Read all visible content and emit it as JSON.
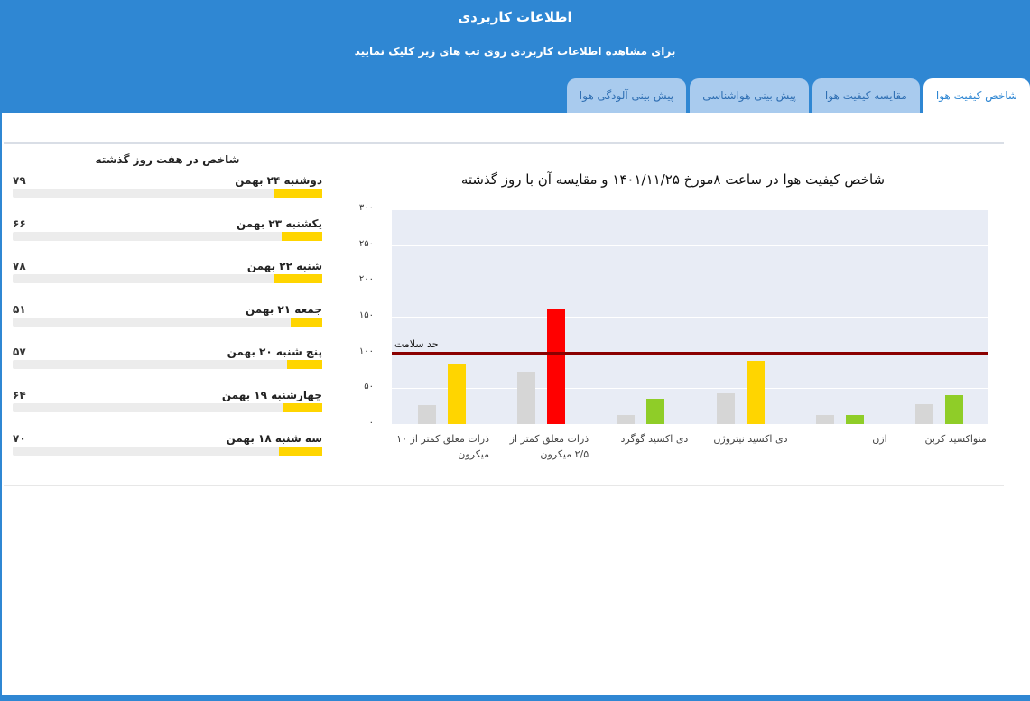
{
  "header": {
    "title": "اطلاعات کاربردی",
    "subtitle": "برای مشاهده اطلاعات کاربردی روی تب های زیر کلیک نمایید"
  },
  "tabs": [
    {
      "label": "شاخص کیفیت هوا",
      "active": true
    },
    {
      "label": "مقایسه کیفیت هوا",
      "active": false
    },
    {
      "label": "پیش بینی هواشناسی",
      "active": false
    },
    {
      "label": "پیش بینی آلودگی هوا",
      "active": false
    }
  ],
  "history": {
    "title": "شاخص در هفت روز گذشته",
    "items": [
      {
        "day": "دوشنبه ۲۴ بهمن",
        "value": "۷۹",
        "level": 79
      },
      {
        "day": "یکشنبه ۲۳ بهمن",
        "value": "۶۶",
        "level": 66
      },
      {
        "day": "شنبه ۲۲ بهمن",
        "value": "۷۸",
        "level": 78
      },
      {
        "day": "جمعه ۲۱ بهمن",
        "value": "۵۱",
        "level": 51
      },
      {
        "day": "پنج شنبه ۲۰ بهمن",
        "value": "۵۷",
        "level": 57
      },
      {
        "day": "چهارشنبه ۱۹ بهمن",
        "value": "۶۴",
        "level": 64
      },
      {
        "day": "سه شنبه ۱۸ بهمن",
        "value": "۷۰",
        "level": 70
      }
    ],
    "bar_color": "#ffd500"
  },
  "chart_data": {
    "type": "bar",
    "title": "شاخص کیفیت هوا در ساعت ۸مورخ ۱۴۰۱/۱۱/۲۵ و مقایسه آن با روز گذشته",
    "categories": [
      "منواکسید کربن",
      "ازن",
      "دی اکسید نیتروژن",
      "دی اکسید گوگرد",
      "ذرات معلق کمتر از ۲/۵ میکرون",
      "ذرات معلق کمتر از ۱۰ میکرون"
    ],
    "series": [
      {
        "values": [
          28,
          12,
          43,
          13,
          73,
          27
        ],
        "color": "#d6d6d6"
      },
      {
        "values": [
          40,
          12,
          88,
          35,
          160,
          85
        ],
        "colors": [
          "#8fcd28",
          "#8fcd28",
          "#ffd500",
          "#8fcd28",
          "#ff0000",
          "#ffd500"
        ]
      }
    ],
    "yticks": [
      "۰",
      "۵۰",
      "۱۰۰",
      "۱۵۰",
      "۲۰۰",
      "۲۵۰",
      "۳۰۰"
    ],
    "ylim": [
      0,
      300
    ],
    "threshold": {
      "value": 100,
      "label": "حد سلامت",
      "color": "#8a0000"
    },
    "grid": true,
    "plot_bg": "#e8ecf5"
  }
}
